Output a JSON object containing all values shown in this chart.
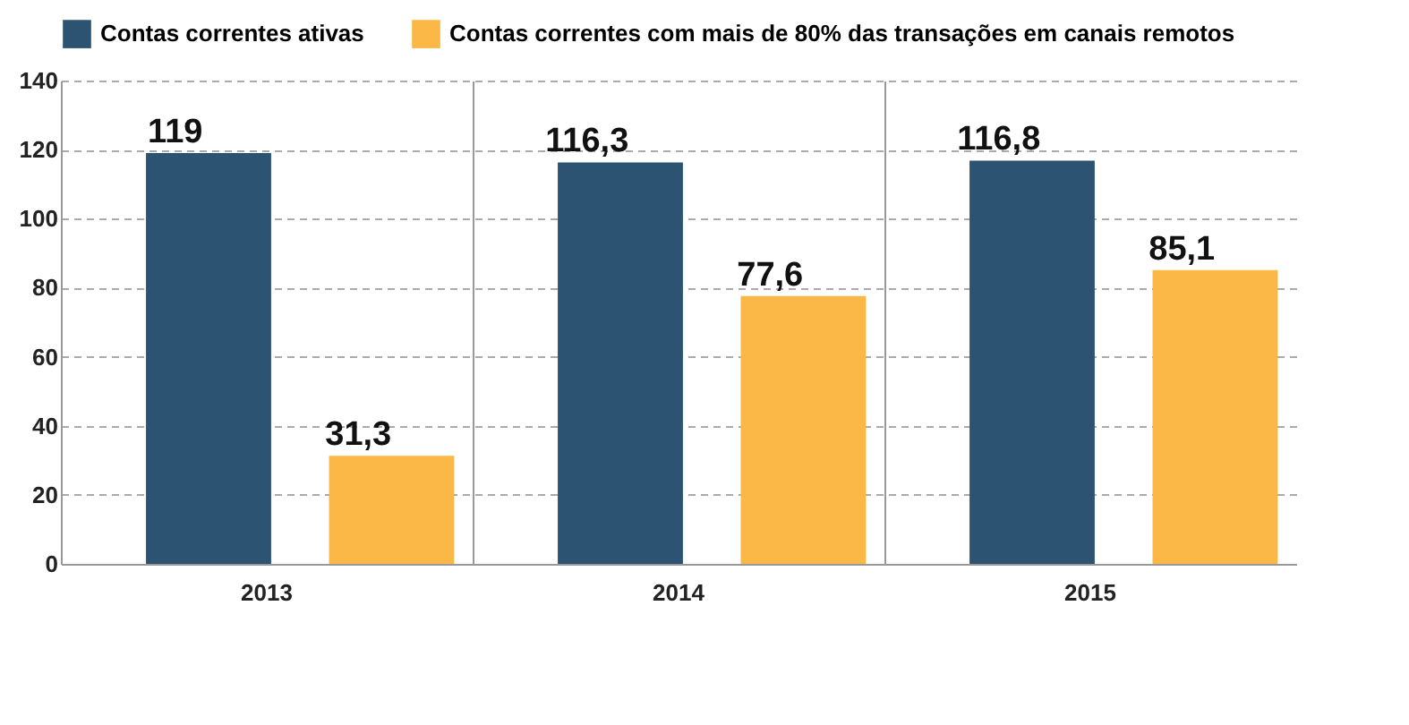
{
  "chart_data": {
    "type": "bar",
    "categories": [
      "2013",
      "2014",
      "2015"
    ],
    "series": [
      {
        "name": "Contas correntes ativas",
        "color": "#2d5372",
        "values": [
          119,
          116.3,
          116.8
        ],
        "value_labels": [
          "119",
          "116,3",
          "116,8"
        ]
      },
      {
        "name": "Contas correntes com mais de 80% das transações em canais remotos",
        "color": "#fbb847",
        "values": [
          31.3,
          77.6,
          85.1
        ],
        "value_labels": [
          "31,3",
          "77,6",
          "85,1"
        ]
      }
    ],
    "ylim": [
      0,
      140
    ],
    "yticks": [
      0,
      20,
      40,
      60,
      80,
      100,
      120,
      140
    ],
    "grid": true,
    "legend": "top right"
  }
}
